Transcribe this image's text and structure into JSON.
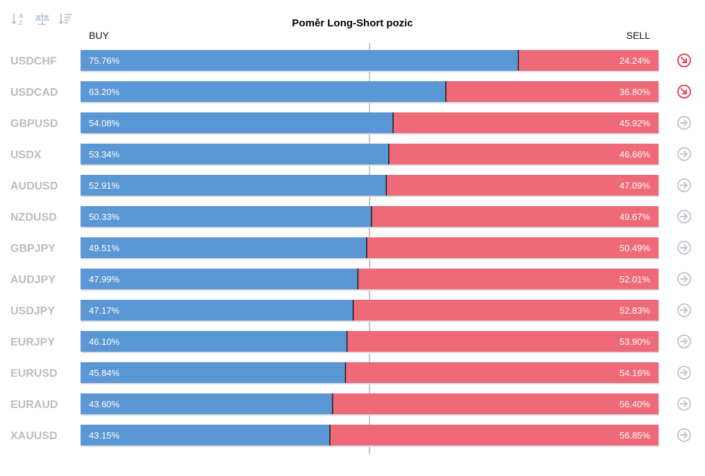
{
  "toolbar": {
    "icons": [
      "sort-alphabetical-icon",
      "balance-scale-icon",
      "sort-descending-icon"
    ]
  },
  "colors": {
    "buy": "#5b97d5",
    "sell": "#ef6a78",
    "trend_down": "#e5485a",
    "neutral": "#c4c8d0"
  },
  "chart_data": {
    "type": "bar",
    "title": "Poměr Long-Short pozic",
    "buy_label": "BUY",
    "sell_label": "SELL",
    "categories": [
      "USDCHF",
      "USDCAD",
      "GBPUSD",
      "USDX",
      "AUDUSD",
      "NZDUSD",
      "GBPJPY",
      "AUDJPY",
      "USDJPY",
      "EURJPY",
      "EURUSD",
      "EURAUD",
      "XAUUSD"
    ],
    "series": [
      {
        "name": "BUY",
        "values": [
          75.76,
          63.2,
          54.08,
          53.34,
          52.91,
          50.33,
          49.51,
          47.99,
          47.17,
          46.1,
          45.84,
          43.6,
          43.15
        ]
      },
      {
        "name": "SELL",
        "values": [
          24.24,
          36.8,
          45.92,
          46.66,
          47.09,
          49.67,
          50.49,
          52.01,
          52.83,
          53.9,
          54.16,
          56.4,
          56.85
        ]
      }
    ],
    "buy_labels": [
      "75.76%",
      "63.20%",
      "54.08%",
      "53.34%",
      "52.91%",
      "50.33%",
      "49.51%",
      "47.99%",
      "47.17%",
      "46.10%",
      "45.84%",
      "43.60%",
      "43.15%"
    ],
    "sell_labels": [
      "24.24%",
      "36.80%",
      "45.92%",
      "46.66%",
      "47.09%",
      "49.67%",
      "50.49%",
      "52.01%",
      "52.83%",
      "53.90%",
      "54.16%",
      "56.40%",
      "56.85%"
    ],
    "trend_icons": [
      "down",
      "down",
      "neutral",
      "neutral",
      "neutral",
      "neutral",
      "neutral",
      "neutral",
      "neutral",
      "neutral",
      "neutral",
      "neutral",
      "neutral"
    ],
    "xlim": [
      0,
      100
    ]
  }
}
